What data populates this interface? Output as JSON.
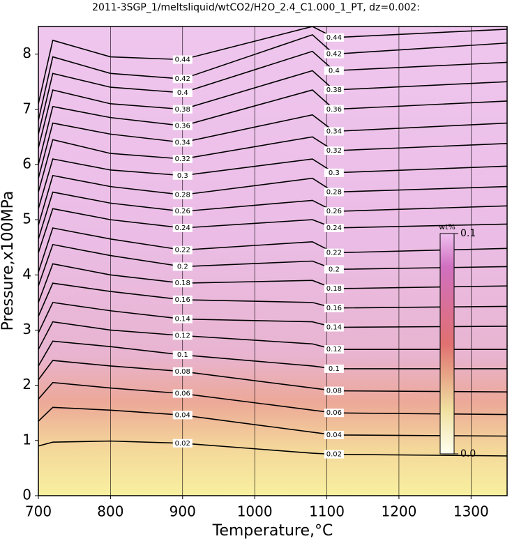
{
  "chart_data": {
    "type": "contour",
    "title": "2011-3SGP_1/meltsliquid/wtCO2/H2O_2.4_C1.000_1_PT, dz=0.002:",
    "x_label": "Temperature,°C",
    "y_label": "Pressure,x100MPa",
    "xlim": [
      700,
      1350
    ],
    "ylim": [
      0,
      8.5
    ],
    "xticks": [
      700,
      800,
      900,
      1000,
      1100,
      1200,
      1300
    ],
    "yticks": [
      0,
      1,
      2,
      3,
      4,
      5,
      6,
      7,
      8
    ],
    "grid": true,
    "color": "#000000",
    "x": [
      700,
      720,
      800,
      900,
      1080,
      1110,
      1350
    ],
    "contours": [
      {
        "level": 0.02,
        "values": [
          0.9,
          0.97,
          0.99,
          0.95,
          0.77,
          0.75,
          0.72
        ]
      },
      {
        "level": 0.04,
        "values": [
          1.35,
          1.6,
          1.55,
          1.46,
          1.15,
          1.1,
          1.08
        ]
      },
      {
        "level": 0.06,
        "values": [
          1.75,
          2.05,
          1.95,
          1.85,
          1.55,
          1.5,
          1.47
        ]
      },
      {
        "level": 0.08,
        "values": [
          2.1,
          2.45,
          2.35,
          2.25,
          1.95,
          1.9,
          1.88
        ]
      },
      {
        "level": 0.1,
        "values": [
          2.35,
          2.8,
          2.7,
          2.55,
          2.35,
          2.3,
          2.3
        ]
      },
      {
        "level": 0.12,
        "values": [
          2.65,
          3.15,
          3.0,
          2.9,
          2.75,
          2.65,
          2.65
        ]
      },
      {
        "level": 0.14,
        "values": [
          2.95,
          3.5,
          3.35,
          3.2,
          3.15,
          3.05,
          3.07
        ]
      },
      {
        "level": 0.16,
        "values": [
          3.25,
          3.85,
          3.7,
          3.55,
          3.5,
          3.4,
          3.43
        ]
      },
      {
        "level": 0.18,
        "values": [
          3.5,
          4.2,
          4.0,
          3.85,
          3.9,
          3.75,
          3.8
        ]
      },
      {
        "level": 0.2,
        "values": [
          3.8,
          4.55,
          4.35,
          4.15,
          4.25,
          4.1,
          4.15
        ]
      },
      {
        "level": 0.22,
        "values": [
          4.05,
          4.85,
          4.65,
          4.45,
          4.6,
          4.4,
          4.48
        ]
      },
      {
        "level": 0.24,
        "values": [
          4.4,
          5.2,
          5.0,
          4.85,
          5.0,
          4.85,
          4.92
        ]
      },
      {
        "level": 0.26,
        "values": [
          4.65,
          5.5,
          5.3,
          5.15,
          5.35,
          5.15,
          5.25
        ]
      },
      {
        "level": 0.28,
        "values": [
          4.9,
          5.8,
          5.6,
          5.45,
          5.75,
          5.5,
          5.6
        ]
      },
      {
        "level": 0.3,
        "values": [
          5.2,
          6.1,
          5.9,
          5.8,
          6.1,
          5.85,
          5.97
        ]
      },
      {
        "level": 0.32,
        "values": [
          5.5,
          6.45,
          6.2,
          6.1,
          6.5,
          6.25,
          6.38
        ]
      },
      {
        "level": 0.34,
        "values": [
          5.75,
          6.75,
          6.55,
          6.4,
          6.9,
          6.6,
          6.75
        ]
      },
      {
        "level": 0.36,
        "values": [
          6.0,
          7.05,
          6.85,
          6.7,
          7.35,
          7.0,
          7.15
        ]
      },
      {
        "level": 0.38,
        "values": [
          6.3,
          7.35,
          7.1,
          7.0,
          7.7,
          7.35,
          7.5
        ]
      },
      {
        "level": 0.4,
        "values": [
          6.55,
          7.65,
          7.4,
          7.3,
          8.05,
          7.7,
          7.85
        ]
      },
      {
        "level": 0.42,
        "values": [
          6.8,
          7.95,
          7.65,
          7.55,
          8.35,
          8.0,
          8.2
        ]
      },
      {
        "level": 0.44,
        "values": [
          7.1,
          8.25,
          7.95,
          7.9,
          8.5,
          8.3,
          8.45
        ]
      }
    ],
    "colorbar": {
      "label": "wt%",
      "ticks": [
        {
          "value": 0,
          "label": "0.0"
        },
        {
          "value": 0.1,
          "label": "0.1"
        }
      ]
    }
  }
}
